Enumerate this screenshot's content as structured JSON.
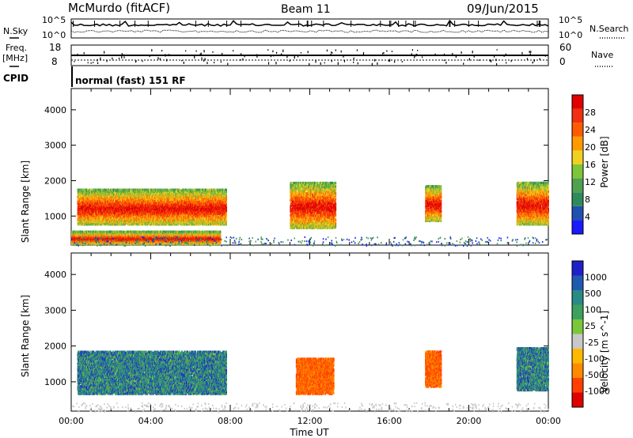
{
  "header": {
    "station": "McMurdo (fitACF)",
    "beam": "Beam 11",
    "date": "09/Jun/2015"
  },
  "labels": {
    "nsky": "N.Sky",
    "nsearch": "N.Search",
    "freq_line1": "Freq.",
    "freq_line2": "[MHz]",
    "nave": "Nave",
    "cpid": "CPID",
    "cpid_text": "normal (fast) 151 RF",
    "noise_tick_hi": "10^5",
    "noise_tick_lo": "10^0",
    "freq_tick_hi": "18",
    "freq_tick_lo": "8",
    "nave_tick_hi": "60",
    "nave_tick_lo": "0"
  },
  "colors": {
    "power_scale": [
      "#1a1aff",
      "#1f4fb0",
      "#2f8a5a",
      "#4fa04f",
      "#7dc43a",
      "#f0d020",
      "#ff9a00",
      "#ff5a00",
      "#f03010",
      "#e00000"
    ],
    "velocity_scale": [
      "#e00000",
      "#ff4000",
      "#ff8a00",
      "#ffb800",
      "#c8c8c8",
      "#7ac83a",
      "#3ea060",
      "#2a8a86",
      "#1f5ab0",
      "#2020c8"
    ]
  },
  "chart_data": [
    {
      "type": "heatmap",
      "name": "power",
      "ylabel": "Slant Range [km]",
      "xlabel": "",
      "x_ticks": [
        "00:00",
        "04:00",
        "08:00",
        "12:00",
        "16:00",
        "20:00",
        "00:00"
      ],
      "x_range_hours": [
        0,
        24
      ],
      "y_ticks": [
        1000,
        2000,
        3000,
        4000
      ],
      "ylim": [
        180,
        4600
      ],
      "colorbar": {
        "label": "Power [dB]",
        "ticks": [
          4,
          8,
          12,
          16,
          20,
          24,
          28
        ],
        "range": [
          0,
          32
        ]
      },
      "features": [
        {
          "t_start": 0.3,
          "t_end": 7.8,
          "r_min": 800,
          "r_max": 1800,
          "level": "high"
        },
        {
          "t_start": 11.0,
          "t_end": 13.3,
          "r_min": 700,
          "r_max": 2000,
          "level": "high"
        },
        {
          "t_start": 17.8,
          "t_end": 18.6,
          "r_min": 900,
          "r_max": 1900,
          "level": "high"
        },
        {
          "t_start": 22.4,
          "t_end": 24.0,
          "r_min": 800,
          "r_max": 2000,
          "level": "high"
        },
        {
          "t_start": 0.0,
          "t_end": 7.5,
          "r_min": 250,
          "r_max": 600,
          "level": "high"
        }
      ]
    },
    {
      "type": "heatmap",
      "name": "velocity",
      "ylabel": "Slant Range [km]",
      "xlabel": "Time UT",
      "x_ticks": [
        "00:00",
        "04:00",
        "08:00",
        "12:00",
        "16:00",
        "20:00",
        "00:00"
      ],
      "x_range_hours": [
        0,
        24
      ],
      "y_ticks": [
        1000,
        2000,
        3000,
        4000
      ],
      "ylim": [
        180,
        4600
      ],
      "colorbar": {
        "label": "Velocity [m s^-1]",
        "ticks": [
          1000,
          500,
          100,
          25,
          -25,
          -100,
          -500,
          -1000
        ],
        "range": [
          -1000,
          1000
        ]
      },
      "features": [
        {
          "t_start": 0.3,
          "t_end": 7.8,
          "r_min": 700,
          "r_max": 1900,
          "level": "positive"
        },
        {
          "t_start": 11.3,
          "t_end": 13.2,
          "r_min": 700,
          "r_max": 1700,
          "level": "negative"
        },
        {
          "t_start": 17.8,
          "t_end": 18.6,
          "r_min": 900,
          "r_max": 1900,
          "level": "negative"
        },
        {
          "t_start": 22.4,
          "t_end": 24.0,
          "r_min": 800,
          "r_max": 2000,
          "level": "positive"
        }
      ]
    }
  ]
}
